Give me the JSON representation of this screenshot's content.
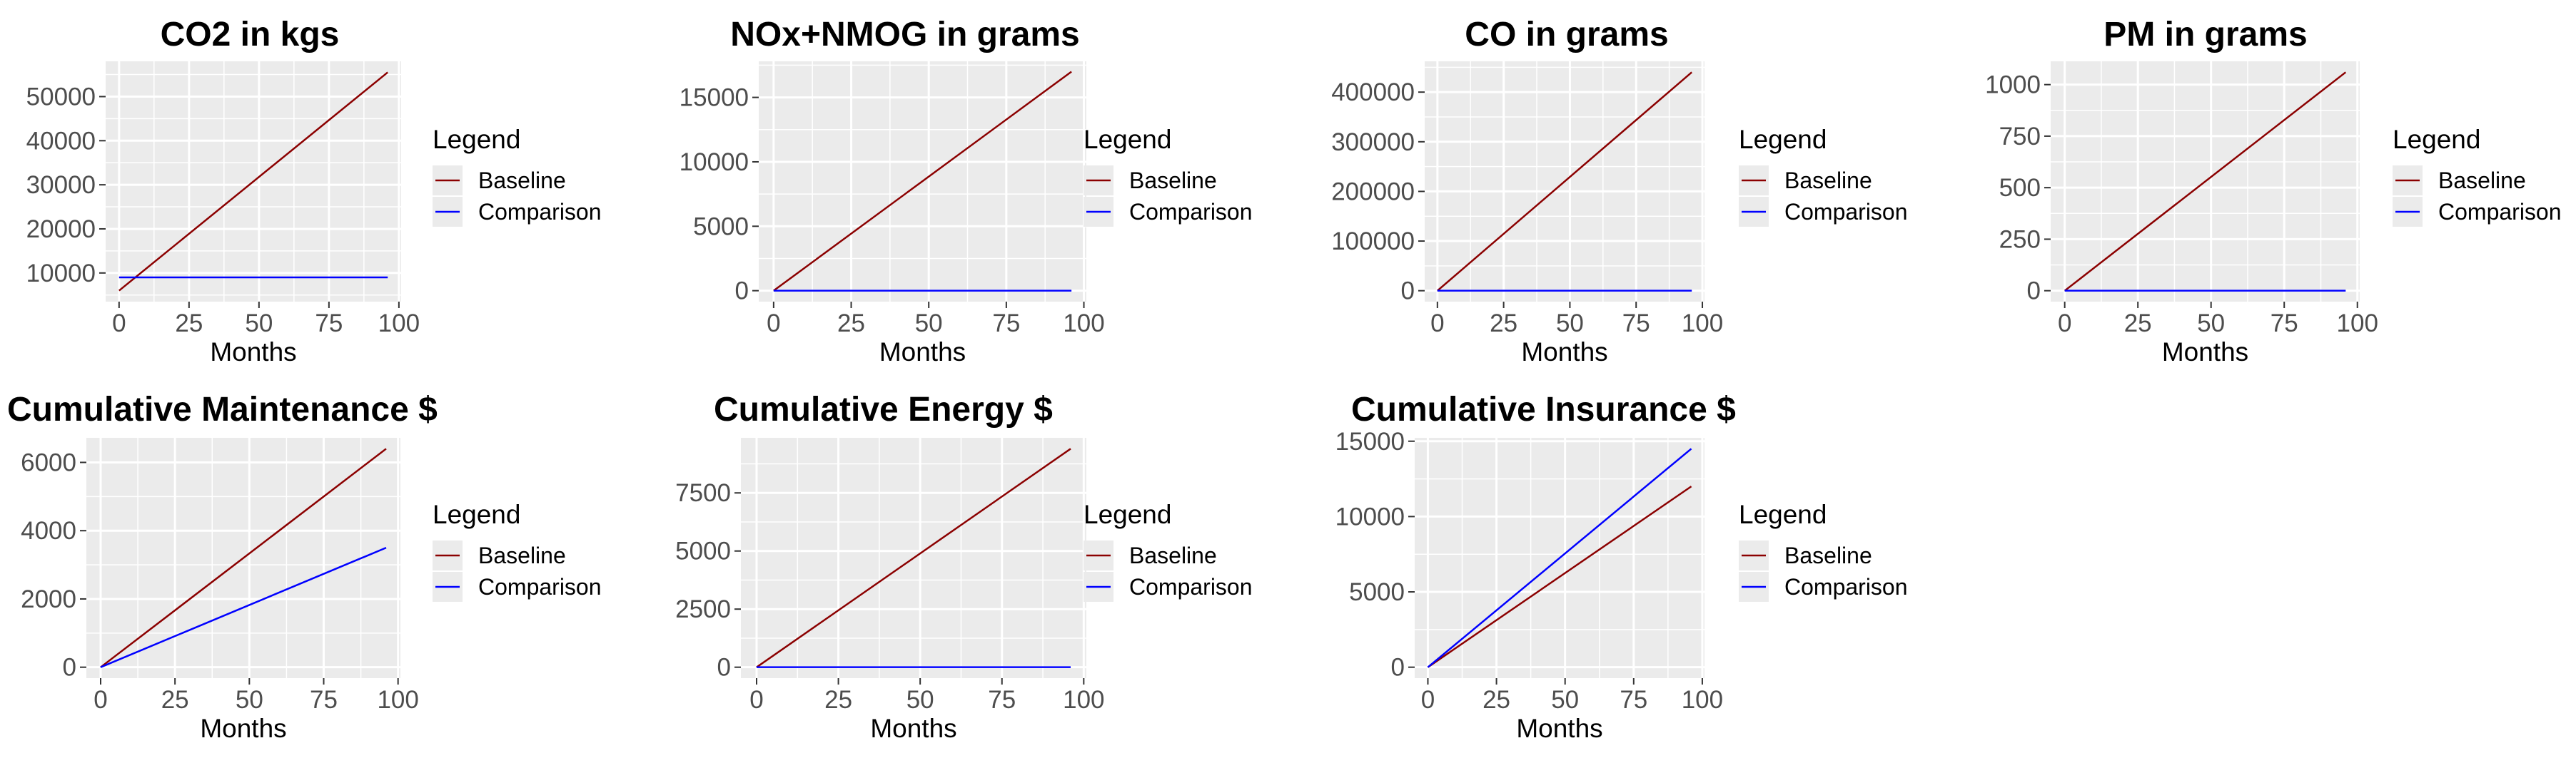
{
  "colors": {
    "panel": "#ebebeb",
    "grid_major": "#ffffff",
    "tick": "#333333",
    "baseline": "#8b0000",
    "comparison": "#0000ff"
  },
  "chart_data": [
    {
      "type": "line",
      "title": "CO2 in kgs",
      "xlabel": "Months",
      "ylabel": "",
      "xlim": [
        -4.8,
        100.8
      ],
      "ylim": [
        3500,
        58000
      ],
      "xticks": [
        0,
        25,
        50,
        75,
        100
      ],
      "xtick_labels": [
        "0",
        "25",
        "50",
        "75",
        "100"
      ],
      "yticks": [
        10000,
        20000,
        30000,
        40000,
        50000
      ],
      "ytick_labels": [
        "10000",
        "20000",
        "30000",
        "40000",
        "50000"
      ],
      "legend_title": "Legend",
      "series": [
        {
          "name": "Baseline",
          "x": [
            0,
            96
          ],
          "values": [
            6000,
            55500
          ]
        },
        {
          "name": "Comparison",
          "x": [
            0,
            96
          ],
          "values": [
            9000,
            9000
          ]
        }
      ]
    },
    {
      "type": "line",
      "title": "NOx+NMOG in grams",
      "xlabel": "Months",
      "ylabel": "",
      "xlim": [
        -4.8,
        100.8
      ],
      "ylim": [
        -850,
        17800
      ],
      "xticks": [
        0,
        25,
        50,
        75,
        100
      ],
      "xtick_labels": [
        "0",
        "25",
        "50",
        "75",
        "100"
      ],
      "yticks": [
        0,
        5000,
        10000,
        15000
      ],
      "ytick_labels": [
        "0",
        "5000",
        "10000",
        "15000"
      ],
      "legend_title": "Legend",
      "series": [
        {
          "name": "Baseline",
          "x": [
            0,
            96
          ],
          "values": [
            0,
            17000
          ]
        },
        {
          "name": "Comparison",
          "x": [
            0,
            96
          ],
          "values": [
            0,
            0
          ]
        }
      ]
    },
    {
      "type": "line",
      "title": "CO in grams",
      "xlabel": "Months",
      "ylabel": "",
      "xlim": [
        -4.8,
        100.8
      ],
      "ylim": [
        -22000,
        462000
      ],
      "xticks": [
        0,
        25,
        50,
        75,
        100
      ],
      "xtick_labels": [
        "0",
        "25",
        "50",
        "75",
        "100"
      ],
      "yticks": [
        0,
        100000,
        200000,
        300000,
        400000
      ],
      "ytick_labels": [
        "0",
        "100000",
        "200000",
        "300000",
        "400000"
      ],
      "legend_title": "Legend",
      "series": [
        {
          "name": "Baseline",
          "x": [
            0,
            96
          ],
          "values": [
            0,
            440000
          ]
        },
        {
          "name": "Comparison",
          "x": [
            0,
            96
          ],
          "values": [
            0,
            0
          ]
        }
      ]
    },
    {
      "type": "line",
      "title": "PM in grams",
      "xlabel": "Months",
      "ylabel": "",
      "xlim": [
        -4.8,
        100.8
      ],
      "ylim": [
        -53,
        1113
      ],
      "xticks": [
        0,
        25,
        50,
        75,
        100
      ],
      "xtick_labels": [
        "0",
        "25",
        "50",
        "75",
        "100"
      ],
      "yticks": [
        0,
        250,
        500,
        750,
        1000
      ],
      "ytick_labels": [
        "0",
        "250",
        "500",
        "750",
        "1000"
      ],
      "legend_title": "Legend",
      "series": [
        {
          "name": "Baseline",
          "x": [
            0,
            96
          ],
          "values": [
            0,
            1060
          ]
        },
        {
          "name": "Comparison",
          "x": [
            0,
            96
          ],
          "values": [
            0,
            0
          ]
        }
      ]
    },
    {
      "type": "line",
      "title": "Cumulative Maintenance $",
      "xlabel": "Months",
      "ylabel": "",
      "xlim": [
        -4.8,
        100.8
      ],
      "ylim": [
        -320,
        6720
      ],
      "xticks": [
        0,
        25,
        50,
        75,
        100
      ],
      "xtick_labels": [
        "0",
        "25",
        "50",
        "75",
        "100"
      ],
      "yticks": [
        0,
        2000,
        4000,
        6000
      ],
      "ytick_labels": [
        "0",
        "2000",
        "4000",
        "6000"
      ],
      "legend_title": "Legend",
      "series": [
        {
          "name": "Baseline",
          "x": [
            0,
            96
          ],
          "values": [
            0,
            6400
          ]
        },
        {
          "name": "Comparison",
          "x": [
            0,
            96
          ],
          "values": [
            0,
            3500
          ]
        }
      ]
    },
    {
      "type": "line",
      "title": "Cumulative Energy $",
      "xlabel": "Months",
      "ylabel": "",
      "xlim": [
        -4.8,
        100.8
      ],
      "ylim": [
        -470,
        9870
      ],
      "xticks": [
        0,
        25,
        50,
        75,
        100
      ],
      "xtick_labels": [
        "0",
        "25",
        "50",
        "75",
        "100"
      ],
      "yticks": [
        0,
        2500,
        5000,
        7500
      ],
      "ytick_labels": [
        "0",
        "2500",
        "5000",
        "7500"
      ],
      "legend_title": "Legend",
      "series": [
        {
          "name": "Baseline",
          "x": [
            0,
            96
          ],
          "values": [
            0,
            9400
          ]
        },
        {
          "name": "Comparison",
          "x": [
            0,
            96
          ],
          "values": [
            0,
            0
          ]
        }
      ]
    },
    {
      "type": "line",
      "title": "Cumulative Insurance $",
      "xlabel": "Months",
      "ylabel": "",
      "xlim": [
        -4.8,
        100.8
      ],
      "ylim": [
        -725,
        15225
      ],
      "xticks": [
        0,
        25,
        50,
        75,
        100
      ],
      "xtick_labels": [
        "0",
        "25",
        "50",
        "75",
        "100"
      ],
      "yticks": [
        0,
        5000,
        10000,
        15000
      ],
      "ytick_labels": [
        "0",
        "5000",
        "10000",
        "15000"
      ],
      "legend_title": "Legend",
      "series": [
        {
          "name": "Baseline",
          "x": [
            0,
            96
          ],
          "values": [
            0,
            12000
          ]
        },
        {
          "name": "Comparison",
          "x": [
            0,
            96
          ],
          "values": [
            0,
            14500
          ]
        }
      ]
    }
  ]
}
